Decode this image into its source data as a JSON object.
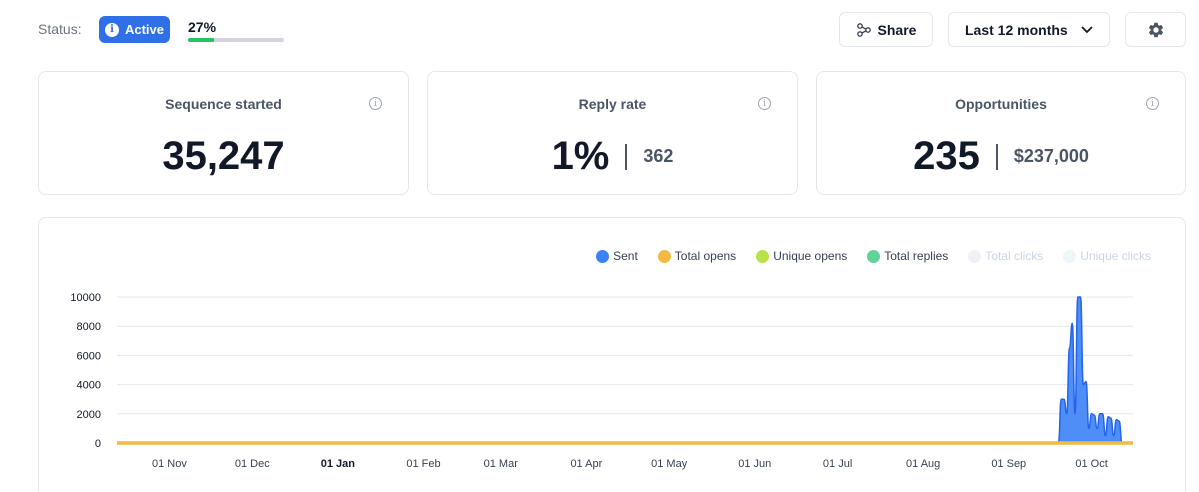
{
  "header": {
    "status_label": "Status:",
    "status_badge": "Active",
    "progress_text": "27%",
    "progress_value": 0.27,
    "share_label": "Share",
    "range_label": "Last 12 months"
  },
  "cards": [
    {
      "title": "Sequence started",
      "value": "35,247",
      "sub": ""
    },
    {
      "title": "Reply rate",
      "value": "1%",
      "sub": "362"
    },
    {
      "title": "Opportunities",
      "value": "235",
      "sub": "$237,000"
    }
  ],
  "colors": {
    "accent": "#2f6fe8",
    "progress": "#22c55e",
    "sent": "#3b82f6",
    "total_opens": "#f4b942",
    "unique_opens": "#b8e34a",
    "total_replies": "#5fd39a",
    "total_clicks": "#eef2f6",
    "unique_clicks": "#eef6f9"
  },
  "chart_data": {
    "type": "area",
    "legend_placement": "top-right",
    "grid": true,
    "ylim": [
      0,
      10000
    ],
    "yticks": [
      "10000",
      "8000",
      "6000",
      "4000",
      "2000",
      "0"
    ],
    "xtick_labels": [
      "01 Nov",
      "01 Dec",
      "01 Jan",
      "01 Feb",
      "01 Mar",
      "01 Apr",
      "01 May",
      "01 Jun",
      "01 Jul",
      "01 Aug",
      "01 Sep",
      "01 Oct"
    ],
    "series": [
      {
        "name": "Sent",
        "color": "#3b82f6",
        "visible": true,
        "points": [
          [
            "2023-09-19",
            0
          ],
          [
            "2023-09-20",
            3000
          ],
          [
            "2023-09-21",
            3000
          ],
          [
            "2023-09-22",
            2000
          ],
          [
            "2023-09-23",
            6500
          ],
          [
            "2023-09-24",
            8200
          ],
          [
            "2023-09-25",
            2000
          ],
          [
            "2023-09-26",
            10000
          ],
          [
            "2023-09-27",
            10000
          ],
          [
            "2023-09-28",
            4000
          ],
          [
            "2023-09-29",
            4200
          ],
          [
            "2023-09-30",
            1000
          ],
          [
            "2023-10-01",
            2000
          ],
          [
            "2023-10-02",
            1900
          ],
          [
            "2023-10-03",
            1000
          ],
          [
            "2023-10-04",
            2000
          ],
          [
            "2023-10-05",
            2000
          ],
          [
            "2023-10-06",
            500
          ],
          [
            "2023-10-07",
            1800
          ],
          [
            "2023-10-08",
            1700
          ],
          [
            "2023-10-09",
            500
          ],
          [
            "2023-10-10",
            1600
          ],
          [
            "2023-10-11",
            1500
          ],
          [
            "2023-10-12",
            0
          ]
        ]
      },
      {
        "name": "Total opens",
        "color": "#f4b942",
        "visible": true,
        "flat_value": 0
      },
      {
        "name": "Unique opens",
        "color": "#b8e34a",
        "visible": true
      },
      {
        "name": "Total replies",
        "color": "#5fd39a",
        "visible": true
      },
      {
        "name": "Total clicks",
        "color": "#eef2f6",
        "visible": false
      },
      {
        "name": "Unique clicks",
        "color": "#eef6f9",
        "visible": false
      }
    ]
  }
}
